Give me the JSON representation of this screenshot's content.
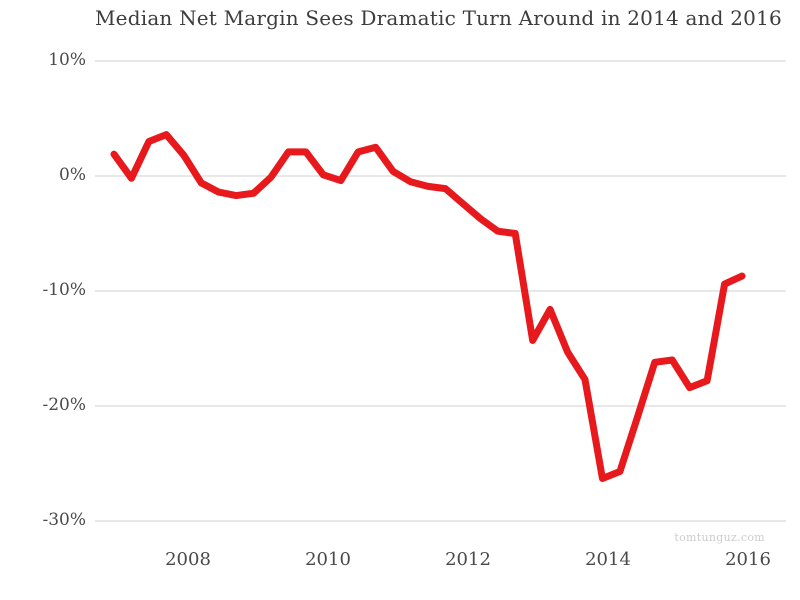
{
  "title": "Median Net Margin Sees Dramatic Turn Around in 2014 and 2016",
  "watermark": "tomtunguz.com",
  "colors": {
    "line": "#e8191c",
    "grid": "#d9d9d9",
    "title_text": "#3d3d3d",
    "axis_text": "#4a4a4a",
    "watermark_text": "#cccccc",
    "background": "#ffffff"
  },
  "chart_data": {
    "type": "line",
    "title": "Median Net Margin Sees Dramatic Turn Around in 2014 and 2016",
    "series_name": "Median Net Margin (%)",
    "x_unit": "quarter",
    "x": [
      "2007 Q1",
      "2007 Q2",
      "2007 Q3",
      "2007 Q4",
      "2008 Q1",
      "2008 Q2",
      "2008 Q3",
      "2008 Q4",
      "2009 Q1",
      "2009 Q2",
      "2009 Q3",
      "2009 Q4",
      "2010 Q1",
      "2010 Q2",
      "2010 Q3",
      "2010 Q4",
      "2011 Q1",
      "2011 Q2",
      "2011 Q3",
      "2011 Q4",
      "2012 Q1",
      "2012 Q2",
      "2012 Q3",
      "2012 Q4",
      "2013 Q1",
      "2013 Q2",
      "2013 Q3",
      "2013 Q4",
      "2014 Q1",
      "2014 Q2",
      "2014 Q3",
      "2014 Q4",
      "2015 Q1",
      "2015 Q2",
      "2015 Q3",
      "2015 Q4",
      "2016 Q1"
    ],
    "values": [
      1.9,
      -0.2,
      3.0,
      3.6,
      1.8,
      -0.6,
      -1.4,
      -1.7,
      -1.5,
      -0.1,
      2.1,
      2.1,
      0.1,
      -0.4,
      2.1,
      2.5,
      0.4,
      -0.5,
      -0.9,
      -1.1,
      -2.4,
      -3.7,
      -4.8,
      -5.0,
      -14.3,
      -11.6,
      -15.3,
      -17.7,
      -26.3,
      -25.7,
      -21.0,
      -16.2,
      -16.0,
      -18.4,
      -17.8,
      -9.4,
      -8.7
    ],
    "x_tick_labels": [
      "2008",
      "2010",
      "2012",
      "2014",
      "2016"
    ],
    "y_tick_labels": [
      "10%",
      "0%",
      "-10%",
      "-20%",
      "-30%"
    ],
    "y_tick_values": [
      10,
      0,
      -10,
      -20,
      -30
    ],
    "ylim": [
      -30,
      10
    ],
    "grid": "horizontal",
    "legend": "none"
  }
}
